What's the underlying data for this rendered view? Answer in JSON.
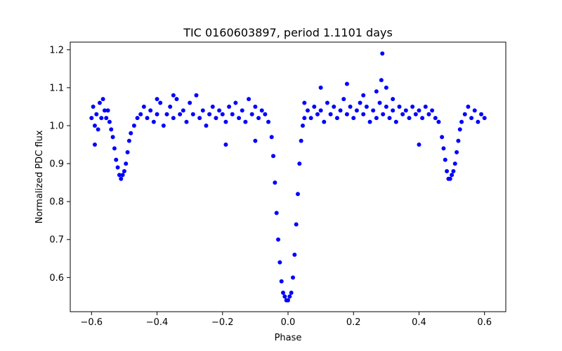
{
  "chart_data": {
    "type": "scatter",
    "title": "TIC 0160603897, period 1.1101 days",
    "xlabel": "Phase",
    "ylabel": "Normalized PDC flux",
    "xlim": [
      -0.665,
      0.665
    ],
    "ylim": [
      0.51,
      1.22
    ],
    "xticks": [
      -0.6,
      -0.4,
      -0.2,
      0.0,
      0.2,
      0.4,
      0.6
    ],
    "xtick_labels": [
      "−0.6",
      "−0.4",
      "−0.2",
      "0.0",
      "0.2",
      "0.4",
      "0.6"
    ],
    "yticks": [
      0.6,
      0.7,
      0.8,
      0.9,
      1.0,
      1.1,
      1.2
    ],
    "ytick_labels": [
      "0.6",
      "0.7",
      "0.8",
      "0.9",
      "1.0",
      "1.1",
      "1.2"
    ],
    "grid": false,
    "marker_color": "#0000ff",
    "series": [
      {
        "points": [
          [
            -0.6,
            1.02
          ],
          [
            -0.595,
            1.05
          ],
          [
            -0.59,
            1.0
          ],
          [
            -0.585,
            1.03
          ],
          [
            -0.58,
            0.99
          ],
          [
            -0.575,
            1.06
          ],
          [
            -0.57,
            1.02
          ],
          [
            -0.565,
            1.07
          ],
          [
            -0.56,
            1.04
          ],
          [
            -0.555,
            1.02
          ],
          [
            -0.55,
            1.04
          ],
          [
            -0.545,
            1.01
          ],
          [
            -0.54,
            0.99
          ],
          [
            -0.535,
            0.97
          ],
          [
            -0.53,
            0.94
          ],
          [
            -0.525,
            0.91
          ],
          [
            -0.52,
            0.89
          ],
          [
            -0.515,
            0.87
          ],
          [
            -0.51,
            0.86
          ],
          [
            -0.505,
            0.87
          ],
          [
            -0.5,
            0.88
          ],
          [
            -0.495,
            0.9
          ],
          [
            -0.49,
            0.93
          ],
          [
            -0.485,
            0.96
          ],
          [
            -0.48,
            0.98
          ],
          [
            -0.47,
            1.0
          ],
          [
            -0.46,
            1.02
          ],
          [
            -0.45,
            1.03
          ],
          [
            -0.44,
            1.05
          ],
          [
            -0.43,
            1.02
          ],
          [
            -0.42,
            1.04
          ],
          [
            -0.41,
            1.01
          ],
          [
            -0.4,
            1.03
          ],
          [
            -0.39,
            1.06
          ],
          [
            -0.38,
            1.0
          ],
          [
            -0.37,
            1.03
          ],
          [
            -0.36,
            1.05
          ],
          [
            -0.35,
            1.02
          ],
          [
            -0.34,
            1.07
          ],
          [
            -0.33,
            1.03
          ],
          [
            -0.32,
            1.04
          ],
          [
            -0.31,
            1.01
          ],
          [
            -0.3,
            1.06
          ],
          [
            -0.29,
            1.03
          ],
          [
            -0.28,
            1.08
          ],
          [
            -0.27,
            1.02
          ],
          [
            -0.26,
            1.04
          ],
          [
            -0.25,
            1.0
          ],
          [
            -0.24,
            1.03
          ],
          [
            -0.23,
            1.05
          ],
          [
            -0.22,
            1.02
          ],
          [
            -0.21,
            1.04
          ],
          [
            -0.2,
            1.03
          ],
          [
            -0.19,
            1.01
          ],
          [
            -0.18,
            1.05
          ],
          [
            -0.17,
            1.03
          ],
          [
            -0.16,
            1.06
          ],
          [
            -0.15,
            1.02
          ],
          [
            -0.14,
            1.04
          ],
          [
            -0.13,
            1.01
          ],
          [
            -0.12,
            1.07
          ],
          [
            -0.11,
            1.03
          ],
          [
            -0.1,
            1.05
          ],
          [
            -0.09,
            1.02
          ],
          [
            -0.08,
            1.04
          ],
          [
            -0.07,
            1.03
          ],
          [
            -0.06,
            1.01
          ],
          [
            -0.05,
            0.97
          ],
          [
            -0.045,
            0.92
          ],
          [
            -0.04,
            0.85
          ],
          [
            -0.035,
            0.77
          ],
          [
            -0.03,
            0.7
          ],
          [
            -0.025,
            0.64
          ],
          [
            -0.02,
            0.59
          ],
          [
            -0.015,
            0.56
          ],
          [
            -0.01,
            0.55
          ],
          [
            -0.005,
            0.54
          ],
          [
            0.0,
            0.54
          ],
          [
            0.005,
            0.55
          ],
          [
            0.01,
            0.56
          ],
          [
            0.015,
            0.6
          ],
          [
            0.02,
            0.66
          ],
          [
            0.025,
            0.74
          ],
          [
            0.03,
            0.82
          ],
          [
            0.035,
            0.9
          ],
          [
            0.04,
            0.96
          ],
          [
            0.045,
            1.0
          ],
          [
            0.05,
            1.02
          ],
          [
            0.06,
            1.04
          ],
          [
            0.07,
            1.02
          ],
          [
            0.08,
            1.05
          ],
          [
            0.09,
            1.03
          ],
          [
            0.1,
            1.04
          ],
          [
            0.11,
            1.01
          ],
          [
            0.12,
            1.06
          ],
          [
            0.13,
            1.03
          ],
          [
            0.14,
            1.05
          ],
          [
            0.15,
            1.02
          ],
          [
            0.16,
            1.04
          ],
          [
            0.17,
            1.07
          ],
          [
            0.18,
            1.03
          ],
          [
            0.19,
            1.05
          ],
          [
            0.2,
            1.02
          ],
          [
            0.21,
            1.04
          ],
          [
            0.22,
            1.06
          ],
          [
            0.23,
            1.03
          ],
          [
            0.24,
            1.05
          ],
          [
            0.25,
            1.01
          ],
          [
            0.26,
            1.04
          ],
          [
            0.27,
            1.02
          ],
          [
            0.28,
            1.06
          ],
          [
            0.29,
            1.03
          ],
          [
            0.3,
            1.05
          ],
          [
            0.31,
            1.02
          ],
          [
            0.32,
            1.04
          ],
          [
            0.33,
            1.01
          ],
          [
            0.34,
            1.05
          ],
          [
            0.35,
            1.03
          ],
          [
            0.36,
            1.04
          ],
          [
            0.37,
            1.02
          ],
          [
            0.38,
            1.05
          ],
          [
            0.39,
            1.03
          ],
          [
            0.4,
            1.04
          ],
          [
            0.41,
            1.02
          ],
          [
            0.42,
            1.05
          ],
          [
            0.43,
            1.03
          ],
          [
            0.44,
            1.04
          ],
          [
            0.45,
            1.02
          ],
          [
            0.46,
            1.01
          ],
          [
            0.47,
            0.97
          ],
          [
            0.475,
            0.94
          ],
          [
            0.48,
            0.91
          ],
          [
            0.485,
            0.88
          ],
          [
            0.49,
            0.86
          ],
          [
            0.495,
            0.86
          ],
          [
            0.5,
            0.87
          ],
          [
            0.505,
            0.88
          ],
          [
            0.51,
            0.9
          ],
          [
            0.515,
            0.93
          ],
          [
            0.52,
            0.96
          ],
          [
            0.525,
            0.99
          ],
          [
            0.53,
            1.01
          ],
          [
            0.54,
            1.03
          ],
          [
            0.55,
            1.05
          ],
          [
            0.56,
            1.02
          ],
          [
            0.57,
            1.04
          ],
          [
            0.58,
            1.01
          ],
          [
            0.59,
            1.03
          ],
          [
            0.6,
            1.02
          ],
          [
            -0.59,
            0.95
          ],
          [
            -0.1,
            0.96
          ],
          [
            -0.4,
            1.07
          ],
          [
            0.1,
            1.1
          ],
          [
            0.18,
            1.11
          ],
          [
            0.23,
            1.08
          ],
          [
            0.27,
            1.09
          ],
          [
            0.285,
            1.12
          ],
          [
            0.288,
            1.19
          ],
          [
            0.3,
            1.1
          ],
          [
            -0.19,
            0.95
          ],
          [
            0.4,
            0.95
          ],
          [
            -0.35,
            1.08
          ],
          [
            0.05,
            1.06
          ],
          [
            0.32,
            1.07
          ]
        ]
      }
    ]
  }
}
